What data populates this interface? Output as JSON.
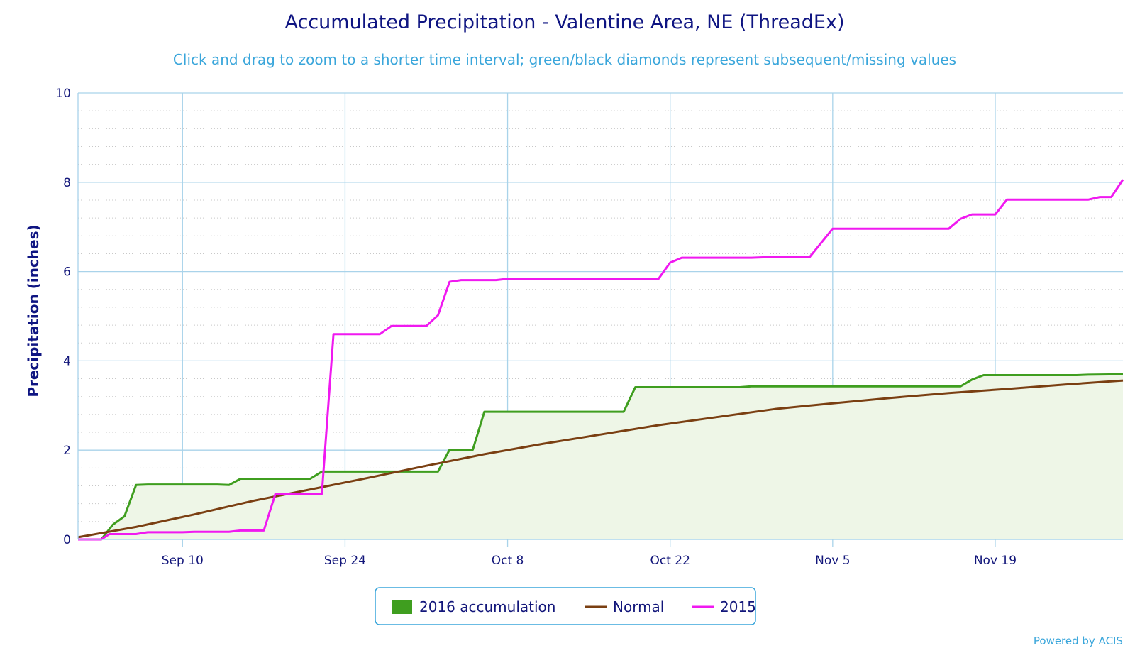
{
  "chart_data": {
    "type": "line",
    "title": "Accumulated Precipitation - Valentine Area, NE (ThreadEx)",
    "subtitle": "Click and drag to zoom to a shorter time interval; green/black diamonds represent subsequent/missing values",
    "ylabel": "Precipitation (inches)",
    "xlabel": "",
    "ylim": [
      0,
      10
    ],
    "yticks": [
      0,
      2,
      4,
      6,
      8,
      10
    ],
    "x_start_date": "Sep 1",
    "x_tick_labels": [
      "Sep 10",
      "Sep 24",
      "Oct 8",
      "Oct 22",
      "Nov 5",
      "Nov 19"
    ],
    "x_tick_days": [
      9,
      23,
      37,
      51,
      65,
      79
    ],
    "x_range_days": [
      0,
      90
    ],
    "grid": true,
    "legend_placement": "bottom-center",
    "credits": "Powered by ACIS",
    "series": [
      {
        "name": "2016 accumulation",
        "type": "area",
        "color": "#3f9e1f",
        "fill": "#eef6e7",
        "points": [
          [
            0,
            0
          ],
          [
            1,
            0
          ],
          [
            2,
            0
          ],
          [
            3,
            0.33
          ],
          [
            4,
            0.52
          ],
          [
            5,
            1.22
          ],
          [
            6,
            1.23
          ],
          [
            12,
            1.23
          ],
          [
            13,
            1.22
          ],
          [
            14,
            1.36
          ],
          [
            20,
            1.36
          ],
          [
            21,
            1.52
          ],
          [
            31,
            1.52
          ],
          [
            32,
            2.01
          ],
          [
            34,
            2.01
          ],
          [
            35,
            2.86
          ],
          [
            47,
            2.86
          ],
          [
            48,
            3.41
          ],
          [
            57,
            3.41
          ],
          [
            58,
            3.43
          ],
          [
            76,
            3.43
          ],
          [
            77,
            3.58
          ],
          [
            78,
            3.68
          ],
          [
            86,
            3.68
          ],
          [
            87,
            3.69
          ],
          [
            90,
            3.7
          ]
        ]
      },
      {
        "name": "Normal",
        "type": "line",
        "color": "#7a3f12",
        "points": [
          [
            0,
            0.05
          ],
          [
            5,
            0.28
          ],
          [
            10,
            0.56
          ],
          [
            15,
            0.86
          ],
          [
            20,
            1.12
          ],
          [
            25,
            1.38
          ],
          [
            30,
            1.65
          ],
          [
            35,
            1.91
          ],
          [
            40,
            2.14
          ],
          [
            45,
            2.35
          ],
          [
            50,
            2.56
          ],
          [
            55,
            2.74
          ],
          [
            60,
            2.92
          ],
          [
            65,
            3.05
          ],
          [
            70,
            3.17
          ],
          [
            75,
            3.28
          ],
          [
            80,
            3.37
          ],
          [
            85,
            3.47
          ],
          [
            90,
            3.56
          ]
        ]
      },
      {
        "name": "2015",
        "type": "line",
        "color": "#f019f0",
        "points": [
          [
            0,
            0
          ],
          [
            2,
            0
          ],
          [
            2.7,
            0.12
          ],
          [
            5,
            0.12
          ],
          [
            6,
            0.16
          ],
          [
            9,
            0.16
          ],
          [
            10,
            0.17
          ],
          [
            13,
            0.17
          ],
          [
            14,
            0.2
          ],
          [
            16,
            0.2
          ],
          [
            17,
            1.02
          ],
          [
            21,
            1.02
          ],
          [
            22,
            4.6
          ],
          [
            26,
            4.6
          ],
          [
            27,
            4.78
          ],
          [
            30,
            4.78
          ],
          [
            31,
            5.02
          ],
          [
            32,
            5.77
          ],
          [
            33,
            5.81
          ],
          [
            36,
            5.81
          ],
          [
            37,
            5.84
          ],
          [
            50,
            5.84
          ],
          [
            51,
            6.2
          ],
          [
            52,
            6.31
          ],
          [
            58,
            6.31
          ],
          [
            59,
            6.32
          ],
          [
            63,
            6.32
          ],
          [
            65,
            6.96
          ],
          [
            75,
            6.96
          ],
          [
            76,
            7.18
          ],
          [
            77,
            7.28
          ],
          [
            79,
            7.28
          ],
          [
            80,
            7.61
          ],
          [
            87,
            7.61
          ],
          [
            88,
            7.67
          ],
          [
            89,
            7.67
          ],
          [
            90,
            8.06
          ]
        ]
      }
    ]
  }
}
